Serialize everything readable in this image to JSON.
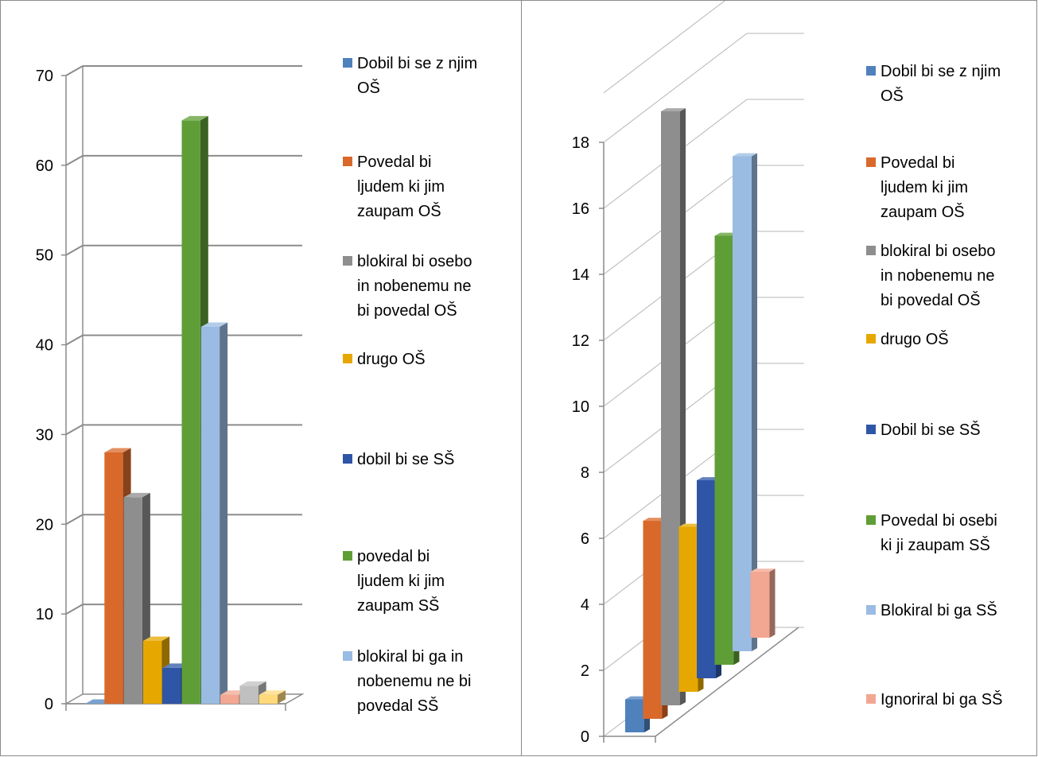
{
  "chart_data": [
    {
      "type": "bar",
      "style": "3d-column",
      "title": "",
      "xlabel": "",
      "ylabel": "",
      "ylim": [
        0,
        70
      ],
      "yticks": [
        "0",
        "10",
        "20",
        "30",
        "40",
        "50",
        "60",
        "70"
      ],
      "grid": true,
      "legend_position": "right",
      "series": [
        {
          "name": "Dobil bi se z njim OŠ",
          "lines": [
            "Dobil bi se z njim",
            "OŠ"
          ],
          "value": 0,
          "color": "#4F81BD"
        },
        {
          "name": "Povedal bi ljudem ki jim zaupam OŠ",
          "lines": [
            "Povedal bi",
            "ljudem ki jim",
            "zaupam OŠ"
          ],
          "value": 28,
          "color": "#D9692B"
        },
        {
          "name": "blokiral bi osebo in nobenemu ne bi povedal OŠ",
          "lines": [
            "blokiral bi osebo",
            "in nobenemu ne",
            "bi povedal OŠ"
          ],
          "value": 23,
          "color": "#8E8E8E"
        },
        {
          "name": "drugo OŠ",
          "lines": [
            "drugo OŠ"
          ],
          "value": 7,
          "color": "#E6A800"
        },
        {
          "name": "dobil bi se SŠ",
          "lines": [
            "dobil bi se SŠ"
          ],
          "value": 4,
          "color": "#2E55A6"
        },
        {
          "name": "povedal bi ljudem ki jim zaupam SŠ",
          "lines": [
            "povedal bi",
            "ljudem ki jim",
            "zaupam SŠ"
          ],
          "value": 65,
          "color": "#5F9E37"
        },
        {
          "name": "blokiral bi ga in nobenemu ne bi povedal SŠ",
          "lines": [
            "blokiral bi ga in",
            "nobenemu ne bi",
            "povedal SŠ"
          ],
          "value": 42,
          "color": "#9ABBE2"
        },
        {
          "name": "",
          "lines": [],
          "value": 1,
          "color": "#F2A792"
        },
        {
          "name": "",
          "lines": [],
          "value": 2,
          "color": "#C0C0C0"
        },
        {
          "name": "",
          "lines": [],
          "value": 1,
          "color": "#FFD97A"
        }
      ]
    },
    {
      "type": "bar",
      "style": "3d-column-depth",
      "title": "",
      "xlabel": "",
      "ylabel": "",
      "ylim": [
        0,
        18
      ],
      "yticks": [
        "0",
        "2",
        "4",
        "6",
        "8",
        "10",
        "12",
        "14",
        "16",
        "18"
      ],
      "grid": true,
      "legend_position": "right",
      "series": [
        {
          "name": "Dobil bi se z njim OŠ",
          "lines": [
            "Dobil bi se z njim",
            "OŠ"
          ],
          "value": 1,
          "color": "#4F81BD"
        },
        {
          "name": "Povedal bi ljudem ki jim zaupam OŠ",
          "lines": [
            "Povedal bi",
            "ljudem ki jim",
            "zaupam OŠ"
          ],
          "value": 6,
          "color": "#D9692B"
        },
        {
          "name": "blokiral bi osebo in nobenemu ne bi povedal OŠ",
          "lines": [
            "blokiral bi osebo",
            "in nobenemu ne",
            "bi povedal OŠ"
          ],
          "value": 18,
          "color": "#8E8E8E"
        },
        {
          "name": "drugo OŠ",
          "lines": [
            "drugo OŠ"
          ],
          "value": 5,
          "color": "#E6A800"
        },
        {
          "name": "Dobil bi se SŠ",
          "lines": [
            "Dobil bi se SŠ"
          ],
          "value": 6,
          "color": "#2E55A6"
        },
        {
          "name": "Povedal bi osebi ki ji zaupam SŠ",
          "lines": [
            "Povedal bi osebi",
            "ki ji zaupam SŠ"
          ],
          "value": 13,
          "color": "#5F9E37"
        },
        {
          "name": "Blokiral bi ga SŠ",
          "lines": [
            "Blokiral bi ga SŠ"
          ],
          "value": 15,
          "color": "#9ABBE2"
        },
        {
          "name": "Ignoriral bi ga SŠ",
          "lines": [
            "Ignoriral bi ga SŠ"
          ],
          "value": 2,
          "color": "#F2A792"
        }
      ]
    }
  ]
}
